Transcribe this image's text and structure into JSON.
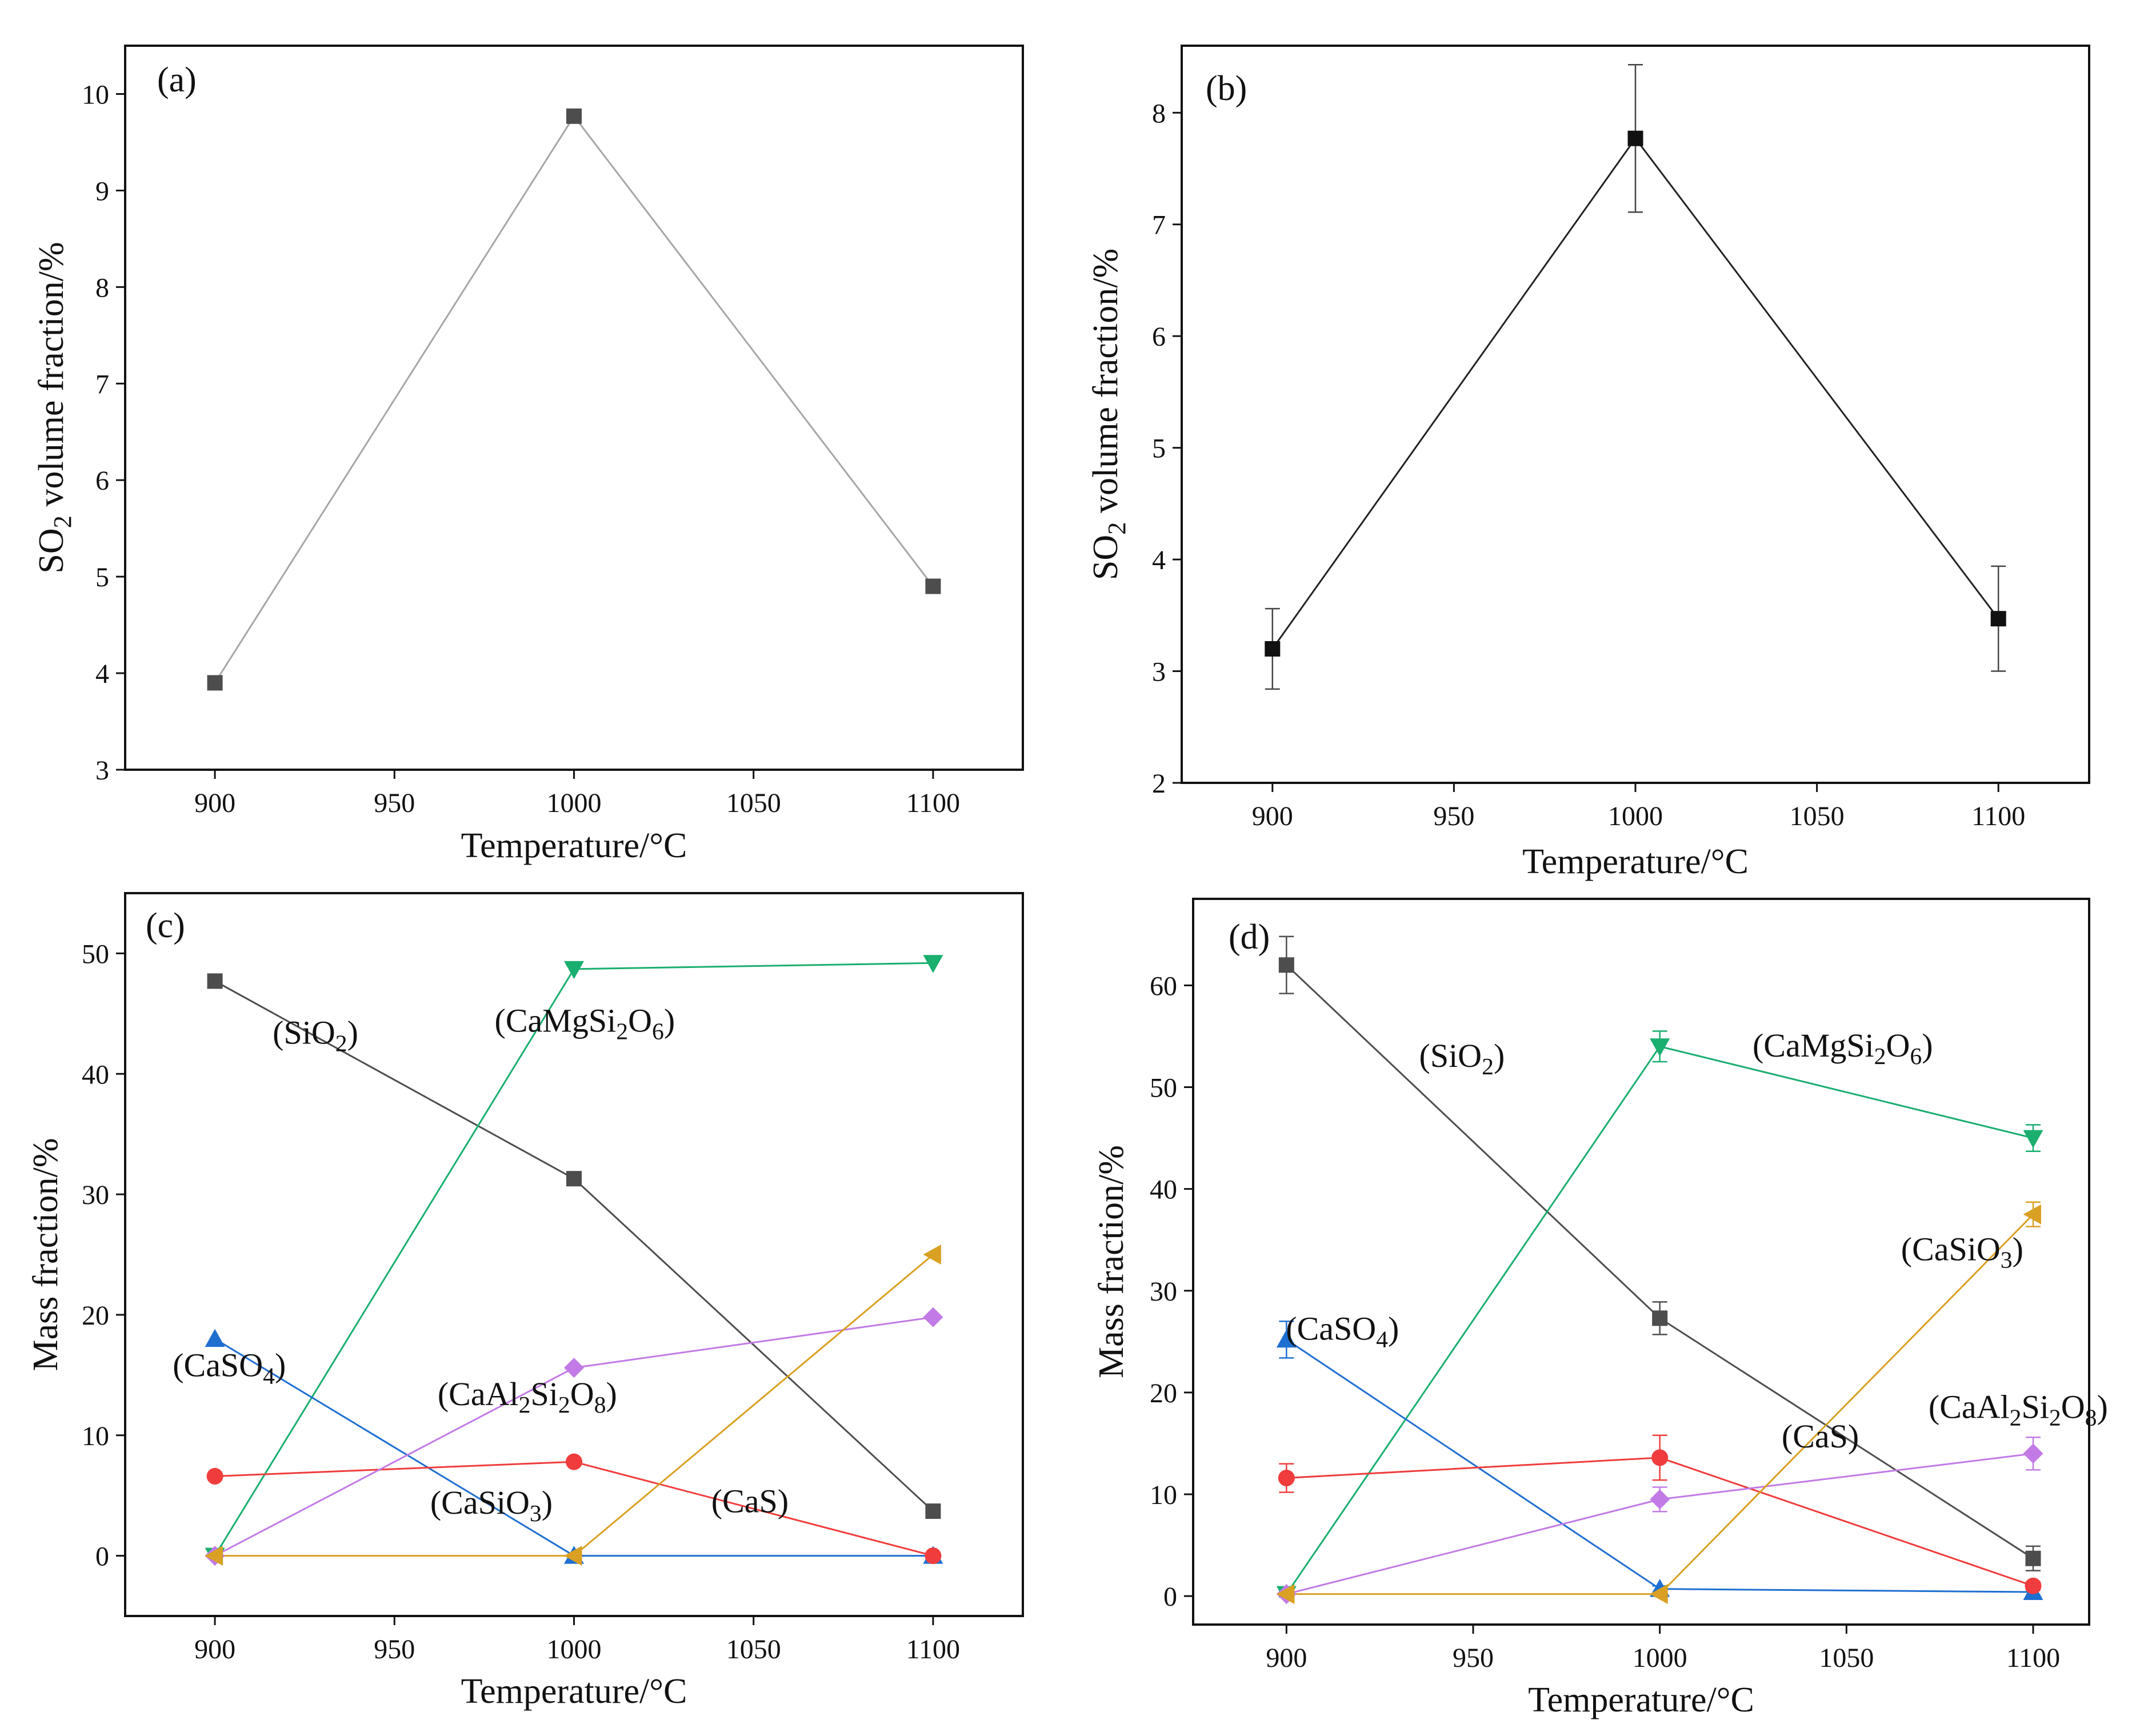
{
  "figure": {
    "panel_count": 4
  },
  "chart_data": [
    {
      "id": "a",
      "type": "line",
      "label": "(a)",
      "xlabel": "Temperature/°C",
      "ylabel": "SO₂ volume fraction/%",
      "ylabel_parts": [
        "SO",
        "2",
        " volume fraction/%"
      ],
      "xlim": [
        875,
        1125
      ],
      "ylim": [
        3,
        10.5
      ],
      "xticks": [
        900,
        950,
        1000,
        1050,
        1100
      ],
      "yticks": [
        3,
        4,
        5,
        6,
        7,
        8,
        9,
        10
      ],
      "grid": false,
      "series": [
        {
          "name": "SO2",
          "color": "#a6a6a6",
          "marker": "square",
          "marker_color": "#4d4d4d",
          "x": [
            900,
            1000,
            1100
          ],
          "y": [
            3.9,
            9.77,
            4.9
          ]
        }
      ],
      "annotations": []
    },
    {
      "id": "b",
      "type": "line",
      "label": "(b)",
      "xlabel": "Temperature/°C",
      "ylabel": "SO₂  volume fraction/%",
      "ylabel_parts": [
        "SO",
        "2",
        "  volume fraction/%"
      ],
      "xlim": [
        875,
        1125
      ],
      "ylim": [
        2,
        8.6
      ],
      "xticks": [
        900,
        950,
        1000,
        1050,
        1100
      ],
      "yticks": [
        2,
        3,
        4,
        5,
        6,
        7,
        8
      ],
      "grid": false,
      "series": [
        {
          "name": "SO2",
          "color": "#222222",
          "marker": "square",
          "marker_color": "#111111",
          "x": [
            900,
            1000,
            1100
          ],
          "y": [
            3.2,
            7.77,
            3.47
          ],
          "err": [
            0.36,
            0.66,
            0.47
          ]
        }
      ],
      "annotations": []
    },
    {
      "id": "c",
      "type": "line",
      "label": "(c)",
      "xlabel": "Temperature/°C",
      "ylabel": "Mass fraction/%",
      "ylabel_parts": [
        "Mass fraction/%"
      ],
      "xlim": [
        875,
        1125
      ],
      "ylim": [
        -5,
        55
      ],
      "xticks": [
        900,
        950,
        1000,
        1050,
        1100
      ],
      "yticks": [
        0,
        10,
        20,
        30,
        40,
        50
      ],
      "grid": false,
      "series": [
        {
          "name": "SiO2",
          "color": "#4d4d4d",
          "marker": "square",
          "marker_color": "#4d4d4d",
          "x": [
            900,
            1000,
            1100
          ],
          "y": [
            47.7,
            31.3,
            3.7
          ]
        },
        {
          "name": "CaMgSi2O6",
          "color": "#1aae6f",
          "marker": "triangle-down",
          "marker_color": "#1aae6f",
          "x": [
            900,
            1000,
            1100
          ],
          "y": [
            0,
            48.7,
            49.2
          ]
        },
        {
          "name": "CaSO4",
          "color": "#1f6fd1",
          "marker": "triangle-up",
          "marker_color": "#1f6fd1",
          "x": [
            900,
            1000,
            1100
          ],
          "y": [
            18,
            0,
            0
          ]
        },
        {
          "name": "CaS",
          "color": "#f03c3c",
          "marker": "circle",
          "marker_color": "#f03c3c",
          "x": [
            900,
            1000,
            1100
          ],
          "y": [
            6.6,
            7.8,
            0
          ]
        },
        {
          "name": "CaAl2Si2O8",
          "color": "#c27be6",
          "marker": "diamond",
          "marker_color": "#c27be6",
          "x": [
            900,
            1000,
            1100
          ],
          "y": [
            0,
            15.6,
            19.8
          ]
        },
        {
          "name": "CaSiO3",
          "color": "#d9a023",
          "marker": "triangle-left",
          "marker_color": "#d9a023",
          "x": [
            900,
            1000,
            1100
          ],
          "y": [
            0,
            0,
            25
          ]
        }
      ],
      "annotations": [
        {
          "parts": [
            "(SiO",
            "2",
            ")"
          ],
          "x": 928,
          "y": 42.5
        },
        {
          "parts": [
            "(CaMgSi",
            "2",
            "O",
            "6",
            ")"
          ],
          "x": 1003,
          "y": 43.5
        },
        {
          "parts": [
            "(CaSO",
            "4",
            ")"
          ],
          "x": 904,
          "y": 14.9
        },
        {
          "parts": [
            "(CaAl",
            "2",
            "Si",
            "2",
            "O",
            "8",
            ")"
          ],
          "x": 987,
          "y": 12.5
        },
        {
          "parts": [
            "(CaSiO",
            "3",
            ")"
          ],
          "x": 977,
          "y": 3.5
        },
        {
          "parts": [
            "(CaS)"
          ],
          "x": 1049,
          "y": 3.6
        }
      ]
    },
    {
      "id": "d",
      "type": "line",
      "label": "(d)",
      "xlabel": "Temperature/°C",
      "ylabel": "Mass fraction/%",
      "ylabel_parts": [
        "Mass fraction/%"
      ],
      "xlim": [
        875,
        1115
      ],
      "ylim": [
        -2.8,
        68.5
      ],
      "xticks": [
        900,
        950,
        1000,
        1050,
        1100
      ],
      "yticks": [
        0,
        10,
        20,
        30,
        40,
        50,
        60
      ],
      "grid": false,
      "series": [
        {
          "name": "SiO2",
          "color": "#4d4d4d",
          "marker": "square",
          "marker_color": "#4d4d4d",
          "x": [
            900,
            1000,
            1100
          ],
          "y": [
            62,
            27.3,
            3.7
          ],
          "err": [
            2.8,
            1.6,
            1.2
          ]
        },
        {
          "name": "CaMgSi2O6",
          "color": "#1aae6f",
          "marker": "triangle-down",
          "marker_color": "#1aae6f",
          "x": [
            900,
            1000,
            1100
          ],
          "y": [
            0.2,
            54,
            45
          ],
          "err": [
            0.3,
            1.5,
            1.3
          ]
        },
        {
          "name": "CaSO4",
          "color": "#1f6fd1",
          "marker": "triangle-up",
          "marker_color": "#1f6fd1",
          "x": [
            900,
            1000,
            1100
          ],
          "y": [
            25.2,
            0.7,
            0.4
          ],
          "err": [
            1.8,
            0.3,
            0.3
          ]
        },
        {
          "name": "CaS",
          "color": "#f03c3c",
          "marker": "circle",
          "marker_color": "#f03c3c",
          "x": [
            900,
            1000,
            1100
          ],
          "y": [
            11.6,
            13.6,
            1.0
          ],
          "err": [
            1.4,
            2.2,
            0.4
          ]
        },
        {
          "name": "CaAl2Si2O8",
          "color": "#c27be6",
          "marker": "diamond",
          "marker_color": "#c27be6",
          "x": [
            900,
            1000,
            1100
          ],
          "y": [
            0.2,
            9.5,
            14
          ],
          "err": [
            0.2,
            1.2,
            1.6
          ]
        },
        {
          "name": "CaSiO3",
          "color": "#d9a023",
          "marker": "triangle-left",
          "marker_color": "#d9a023",
          "x": [
            900,
            1000,
            1100
          ],
          "y": [
            0.2,
            0.2,
            37.5
          ],
          "err": [
            0.2,
            0.2,
            1.2
          ]
        }
      ],
      "annotations": [
        {
          "parts": [
            "(SiO",
            "2",
            ")"
          ],
          "x": 947,
          "y": 52
        },
        {
          "parts": [
            "(CaMgSi",
            "2",
            "O",
            "6",
            ")"
          ],
          "x": 1049,
          "y": 53
        },
        {
          "parts": [
            "(CaSO",
            "4",
            ")"
          ],
          "x": 915,
          "y": 25.2
        },
        {
          "parts": [
            "(CaS)"
          ],
          "x": 1043,
          "y": 14.6
        },
        {
          "parts": [
            "(CaSiO",
            "3",
            ")"
          ],
          "x": 1081,
          "y": 33
        },
        {
          "parts": [
            "(CaAl",
            "2",
            "Si",
            "2",
            "O",
            "8",
            ")"
          ],
          "x": 1096,
          "y": 17.5
        }
      ]
    }
  ]
}
